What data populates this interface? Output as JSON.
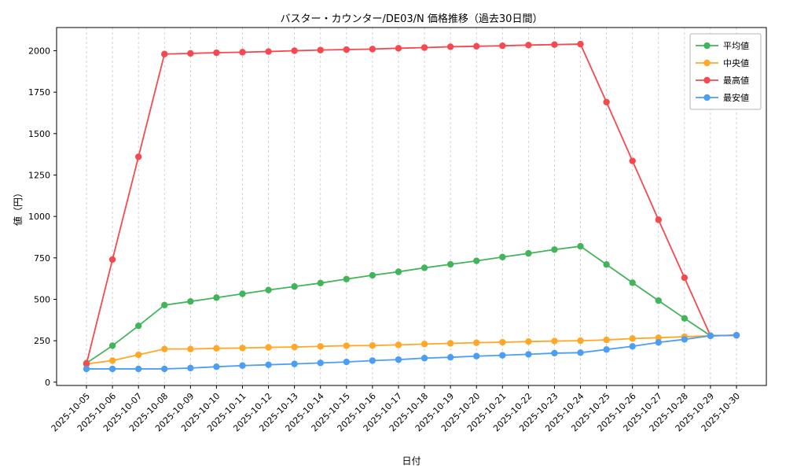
{
  "chart_data": {
    "type": "line",
    "title": "バスター・カウンター/DE03/N 価格推移（過去30日間）",
    "xlabel": "日付",
    "ylabel": "値（円）",
    "ylim": [
      -20,
      2140
    ],
    "yticks": [
      0,
      250,
      500,
      750,
      1000,
      1250,
      1500,
      1750,
      2000
    ],
    "grid": "vertical-dashed",
    "legend_position": "upper right",
    "categories": [
      "2025-10-05",
      "2025-10-06",
      "2025-10-07",
      "2025-10-08",
      "2025-10-09",
      "2025-10-10",
      "2025-10-11",
      "2025-10-12",
      "2025-10-13",
      "2025-10-14",
      "2025-10-15",
      "2025-10-16",
      "2025-10-17",
      "2025-10-18",
      "2025-10-19",
      "2025-10-20",
      "2025-10-21",
      "2025-10-22",
      "2025-10-23",
      "2025-10-24",
      "2025-10-25",
      "2025-10-26",
      "2025-10-27",
      "2025-10-28",
      "2025-10-29",
      "2025-10-30"
    ],
    "series": [
      {
        "name": "平均値",
        "color": "#42b45a",
        "values": [
          115,
          220,
          340,
          465,
          487,
          510,
          533,
          556,
          577,
          598,
          622,
          645,
          666,
          690,
          711,
          732,
          755,
          777,
          800,
          820,
          710,
          600,
          492,
          385,
          280,
          283
        ]
      },
      {
        "name": "中央値",
        "color": "#ffa726",
        "values": [
          110,
          130,
          165,
          200,
          200,
          204,
          206,
          210,
          212,
          216,
          220,
          221,
          225,
          230,
          234,
          238,
          241,
          245,
          248,
          250,
          255,
          263,
          268,
          274,
          280,
          283
        ]
      },
      {
        "name": "最高値",
        "color": "#f6484e",
        "values": [
          110,
          740,
          1360,
          1980,
          1984,
          1988,
          1991,
          1995,
          2000,
          2004,
          2007,
          2010,
          2015,
          2019,
          2024,
          2027,
          2030,
          2034,
          2037,
          2040,
          1690,
          1335,
          980,
          630,
          280,
          283
        ]
      },
      {
        "name": "最安値",
        "color": "#4c9ef5",
        "values": [
          80,
          80,
          80,
          80,
          85,
          93,
          100,
          105,
          110,
          116,
          122,
          130,
          136,
          145,
          150,
          157,
          162,
          168,
          175,
          178,
          197,
          216,
          240,
          258,
          280,
          283
        ]
      }
    ]
  }
}
